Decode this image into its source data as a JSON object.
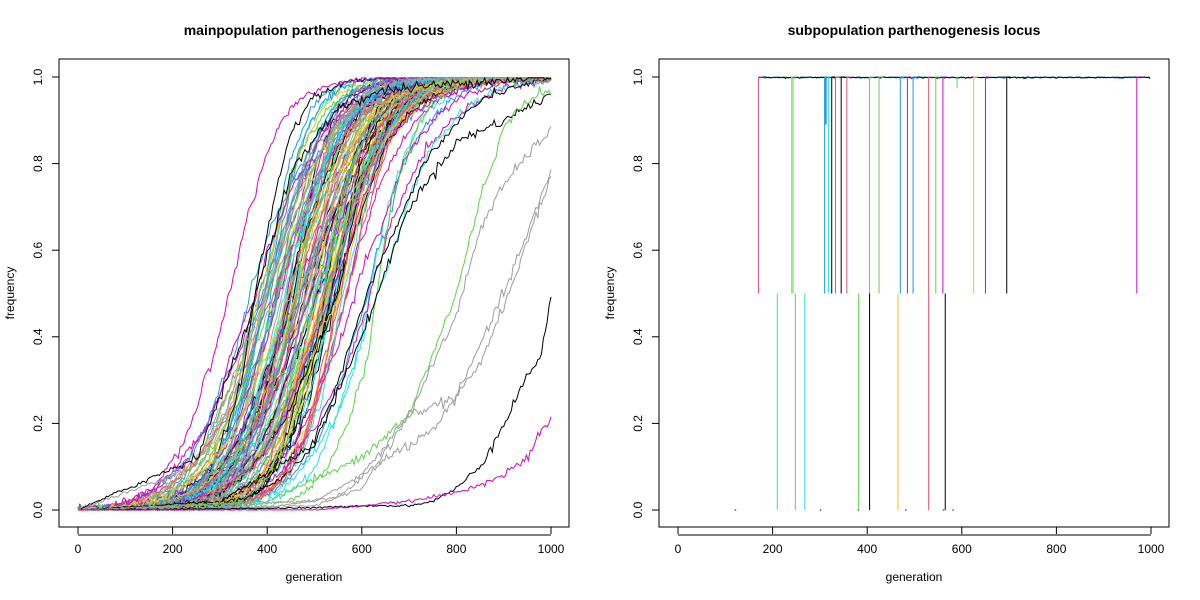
{
  "palette": [
    "#000000",
    "#DF536B",
    "#61D04F",
    "#2297E6",
    "#28E2E5",
    "#CD0BBC",
    "#F5C710",
    "#9E9E9E"
  ],
  "chart_data": [
    {
      "type": "line",
      "title": "mainpopulation parthenogenesis locus",
      "xlabel": "generation",
      "ylabel": "frequency",
      "xlim": [
        0,
        1000
      ],
      "ylim": [
        0,
        1
      ],
      "xticks": [
        "0",
        "200",
        "400",
        "600",
        "800",
        "1000"
      ],
      "yticks": [
        "0.0",
        "0.2",
        "0.4",
        "0.6",
        "0.8",
        "1.0"
      ],
      "grid": false,
      "legend": "none",
      "replicates": 120,
      "sweep_midpoint_range": [
        300,
        700
      ],
      "notable_series": [
        {
          "color": "#9E9E9E",
          "x": [
            0,
            250,
            400,
            500,
            600,
            700,
            800,
            900,
            1000
          ],
          "y": [
            0,
            0.1,
            0.5,
            0.85,
            0.93,
            0.96,
            0.98,
            0.99,
            0.99
          ]
        },
        {
          "color": "#000000",
          "x": [
            0,
            250,
            350,
            450,
            550,
            650,
            750,
            850,
            1000
          ],
          "y": [
            0,
            0.12,
            0.4,
            0.78,
            0.93,
            0.97,
            0.98,
            0.99,
            1.0
          ]
        },
        {
          "color": "#000000",
          "x": [
            0,
            300,
            500,
            600,
            700,
            800,
            900,
            950,
            1000
          ],
          "y": [
            0,
            0.02,
            0.15,
            0.4,
            0.7,
            0.85,
            0.9,
            0.93,
            0.96
          ]
        },
        {
          "color": "#61D04F",
          "x": [
            0,
            400,
            600,
            700,
            800,
            850,
            900,
            950,
            1000
          ],
          "y": [
            0,
            0.02,
            0.12,
            0.22,
            0.5,
            0.72,
            0.88,
            0.95,
            0.97
          ]
        },
        {
          "color": "#9E9E9E",
          "x": [
            0,
            500,
            600,
            700,
            800,
            850,
            900,
            950,
            1000
          ],
          "y": [
            0,
            0.01,
            0.05,
            0.22,
            0.45,
            0.65,
            0.75,
            0.82,
            0.88
          ]
        },
        {
          "color": "#9E9E9E",
          "x": [
            0,
            500,
            600,
            700,
            750,
            800,
            850,
            900,
            950,
            1000
          ],
          "y": [
            0,
            0.02,
            0.08,
            0.22,
            0.24,
            0.26,
            0.38,
            0.5,
            0.64,
            0.78
          ]
        },
        {
          "color": "#9E9E9E",
          "x": [
            0,
            400,
            550,
            650,
            750,
            800,
            850,
            900,
            950,
            1000
          ],
          "y": [
            0,
            0.005,
            0.03,
            0.12,
            0.18,
            0.26,
            0.34,
            0.47,
            0.62,
            0.77
          ]
        },
        {
          "color": "#000000",
          "x": [
            0,
            500,
            600,
            700,
            750,
            800,
            850,
            900,
            950,
            980,
            1000
          ],
          "y": [
            0,
            0.005,
            0.01,
            0.01,
            0.02,
            0.05,
            0.1,
            0.2,
            0.31,
            0.36,
            0.49
          ]
        },
        {
          "color": "#CD0BBC",
          "x": [
            0,
            500,
            600,
            700,
            750,
            800,
            850,
            900,
            950,
            980,
            1000
          ],
          "y": [
            0,
            0.0,
            0.01,
            0.02,
            0.03,
            0.04,
            0.06,
            0.08,
            0.12,
            0.18,
            0.21
          ]
        }
      ]
    },
    {
      "type": "line",
      "title": "subpopulation parthenogenesis locus",
      "xlabel": "generation",
      "ylabel": "frequency",
      "xlim": [
        0,
        1000
      ],
      "ylim": [
        0,
        1
      ],
      "xticks": [
        "0",
        "200",
        "400",
        "600",
        "800",
        "1000"
      ],
      "yticks": [
        "0.0",
        "0.2",
        "0.4",
        "0.6",
        "0.8",
        "1.0"
      ],
      "grid": false,
      "legend": "none",
      "jumps_to_half": [
        {
          "x": 170,
          "color": "#DF536B"
        },
        {
          "x": 240,
          "color": "#F5C710"
        },
        {
          "x": 243,
          "color": "#61D04F"
        },
        {
          "x": 310,
          "color": "#2297E6"
        },
        {
          "x": 318,
          "color": "#28E2E5"
        },
        {
          "x": 325,
          "color": "#000000"
        },
        {
          "x": 333,
          "color": "#DF536B"
        },
        {
          "x": 345,
          "color": "#000000"
        },
        {
          "x": 357,
          "color": "#DF536B"
        },
        {
          "x": 405,
          "color": "#61D04F"
        },
        {
          "x": 425,
          "color": "#61D04F"
        },
        {
          "x": 470,
          "color": "#2297E6"
        },
        {
          "x": 485,
          "color": "#CD0BBC"
        },
        {
          "x": 497,
          "color": "#2297E6"
        },
        {
          "x": 530,
          "color": "#DF536B"
        },
        {
          "x": 545,
          "color": "#61D04F"
        },
        {
          "x": 560,
          "color": "#CD0BBC"
        },
        {
          "x": 625,
          "color": "#F5C710"
        },
        {
          "x": 650,
          "color": "#CD0BBC"
        },
        {
          "x": 695,
          "color": "#000000"
        },
        {
          "x": 970,
          "color": "#CD0BBC"
        }
      ],
      "jumps_to_one_from_zero": [
        {
          "x": 210,
          "color": "#28E2E5"
        },
        {
          "x": 248,
          "color": "#61D04F"
        },
        {
          "x": 268,
          "color": "#28E2E5"
        },
        {
          "x": 382,
          "color": "#61D04F"
        },
        {
          "x": 405,
          "color": "#000000"
        },
        {
          "x": 465,
          "color": "#F5C710"
        },
        {
          "x": 530,
          "color": "#DF536B"
        },
        {
          "x": 565,
          "color": "#000000"
        }
      ],
      "baseline_end": 1000
    }
  ]
}
